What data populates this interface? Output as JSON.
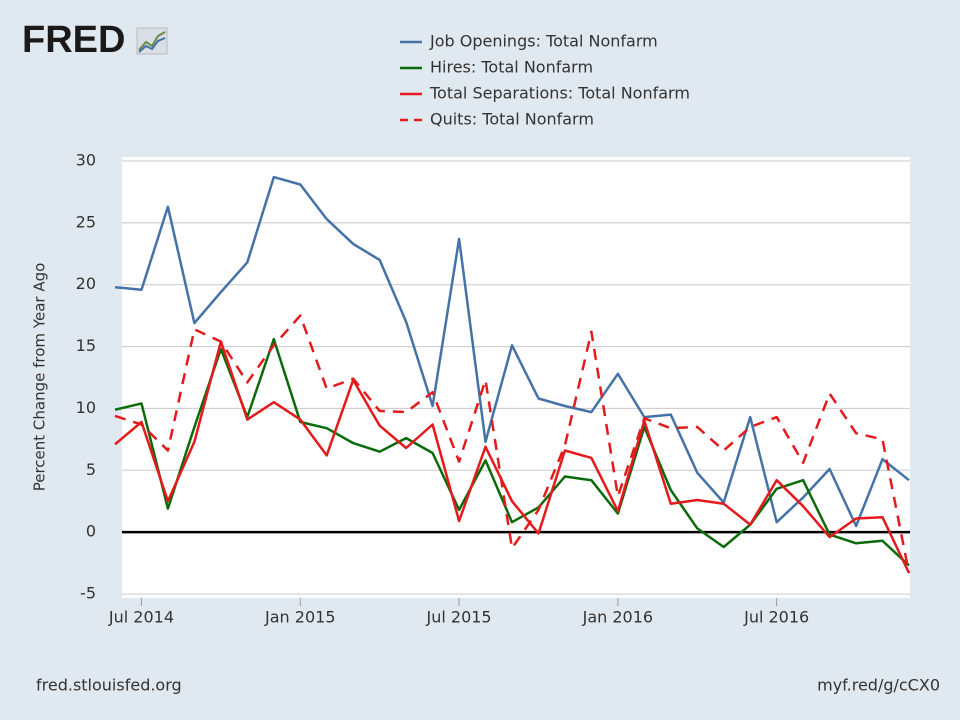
{
  "chart_data": {
    "type": "line",
    "logo": "FRED",
    "y_label": "Percent Change from Year Ago",
    "source": "fred.stlouisfed.org",
    "url": "myf.red/g/cCX0",
    "x": [
      "2014-06",
      "2014-07",
      "2014-08",
      "2014-09",
      "2014-10",
      "2014-11",
      "2014-12",
      "2015-01",
      "2015-02",
      "2015-03",
      "2015-04",
      "2015-05",
      "2015-06",
      "2015-07",
      "2015-08",
      "2015-09",
      "2015-10",
      "2015-11",
      "2015-12",
      "2016-01",
      "2016-02",
      "2016-03",
      "2016-04",
      "2016-05",
      "2016-06",
      "2016-07",
      "2016-08",
      "2016-09",
      "2016-10",
      "2016-11",
      "2016-12"
    ],
    "xlim": [
      "2014-06",
      "2016-12"
    ],
    "xticks": [
      {
        "value": "2014-07",
        "label": "Jul 2014"
      },
      {
        "value": "2015-01",
        "label": "Jan 2015"
      },
      {
        "value": "2015-07",
        "label": "Jul 2015"
      },
      {
        "value": "2016-01",
        "label": "Jan 2016"
      },
      {
        "value": "2016-07",
        "label": "Jul 2016"
      }
    ],
    "ylim": [
      -5,
      30
    ],
    "yticks": [
      -5,
      0,
      5,
      10,
      15,
      20,
      25,
      30
    ],
    "grid": true,
    "zero_line": true,
    "series": [
      {
        "name": "Job Openings: Total Nonfarm",
        "color": "#4572a7",
        "dash": false,
        "values": [
          19.8,
          19.6,
          26.3,
          16.9,
          19.4,
          21.8,
          28.7,
          28.1,
          25.3,
          23.3,
          22.0,
          17.0,
          10.2,
          23.7,
          7.3,
          15.1,
          10.8,
          10.2,
          9.7,
          12.8,
          9.3,
          9.5,
          4.8,
          2.4,
          9.3,
          0.8,
          2.8,
          5.1,
          0.5,
          5.9,
          4.2
        ]
      },
      {
        "name": "Hires: Total Nonfarm",
        "color": "#0b6b0b",
        "dash": false,
        "values": [
          9.9,
          10.4,
          1.9,
          8.5,
          14.8,
          9.3,
          15.6,
          8.9,
          8.4,
          7.2,
          6.5,
          7.6,
          6.4,
          1.8,
          5.8,
          0.8,
          2.0,
          4.5,
          4.2,
          1.5,
          8.5,
          3.4,
          0.3,
          -1.2,
          0.6,
          3.5,
          4.2,
          -0.2,
          -0.9,
          -0.7,
          -2.7
        ]
      },
      {
        "name": "Total Separations: Total Nonfarm",
        "color": "#e41a1c",
        "dash": false,
        "values": [
          7.1,
          8.9,
          2.5,
          7.3,
          15.4,
          9.1,
          10.5,
          9.1,
          6.2,
          12.3,
          8.6,
          6.8,
          8.7,
          0.9,
          6.9,
          2.5,
          -0.1,
          6.6,
          6.0,
          1.7,
          9.0,
          2.3,
          2.6,
          2.3,
          0.6,
          4.2,
          2.1,
          -0.4,
          1.1,
          1.2,
          -3.3
        ]
      },
      {
        "name": "Quits: Total Nonfarm",
        "color": "#e41a1c",
        "dash": true,
        "values": [
          9.4,
          8.7,
          6.6,
          16.4,
          15.4,
          12.1,
          15.1,
          17.5,
          11.6,
          12.4,
          9.8,
          9.7,
          11.3,
          5.7,
          12.3,
          -1.3,
          1.8,
          7.0,
          16.2,
          2.9,
          9.2,
          8.4,
          8.5,
          6.6,
          8.5,
          9.3,
          5.6,
          11.2,
          8.0,
          7.5,
          -3.3
        ]
      }
    ]
  }
}
